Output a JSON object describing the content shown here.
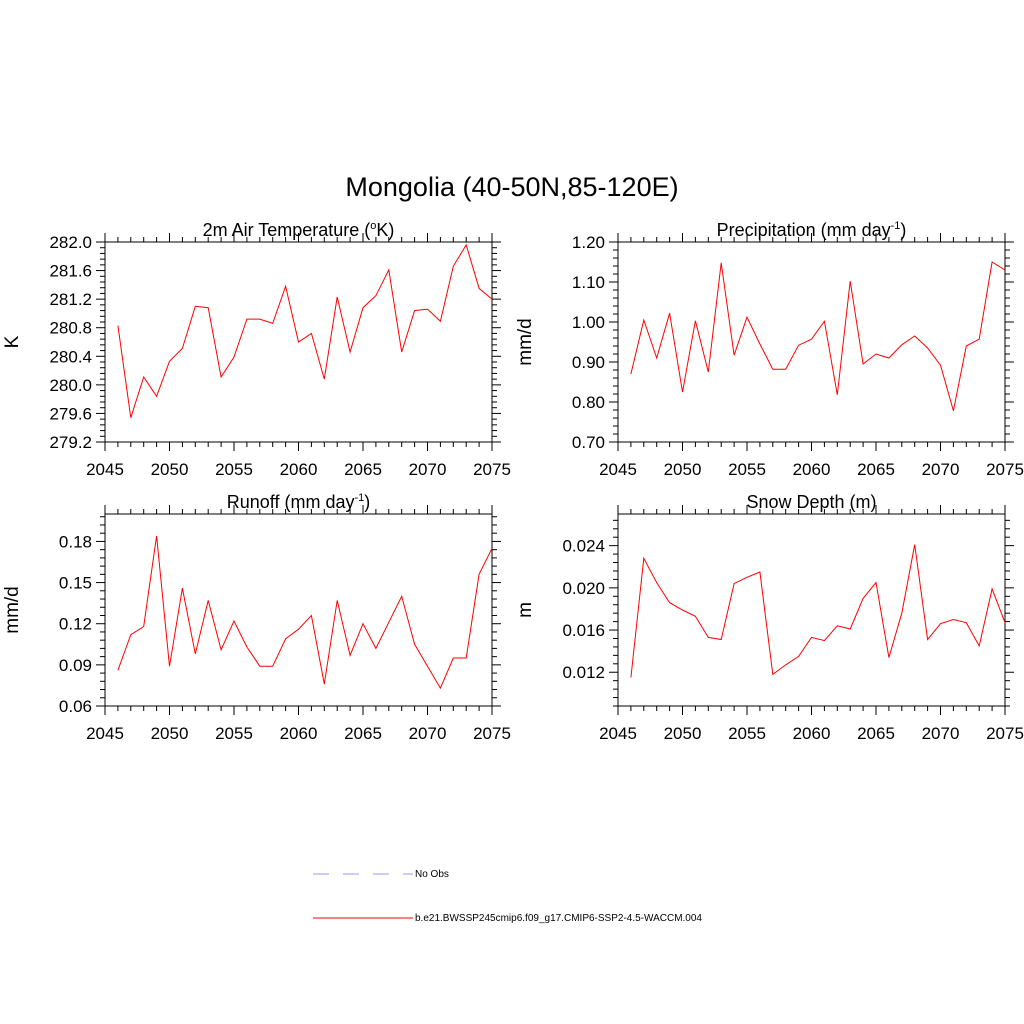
{
  "figure": {
    "title": "Mongolia (40-50N,85-120E)"
  },
  "legend": {
    "items": [
      {
        "label": "No Obs",
        "color": "#9999ee",
        "dashed": true
      },
      {
        "label": "b.e21.BWSSP245cmip6.f09_g17.CMIP6-SSP2-4.5-WACCM.004",
        "color": "#ff0000",
        "dashed": false
      }
    ]
  },
  "chart_data": [
    {
      "type": "line",
      "title": "2m Air Temperature (",
      "title_sup": "o",
      "title_tail": "K)",
      "ylabel": "K",
      "xlim": [
        2045,
        2075
      ],
      "ylim": [
        279.2,
        282.0
      ],
      "xticks": [
        2045,
        2050,
        2055,
        2060,
        2065,
        2070,
        2075
      ],
      "yticks": [
        279.2,
        279.6,
        280.0,
        280.4,
        280.8,
        281.2,
        281.6,
        282.0
      ],
      "ytick_labels": [
        "279.2",
        "279.6",
        "280.0",
        "280.4",
        "280.8",
        "281.2",
        "281.6",
        "282.0"
      ],
      "series": [
        {
          "color": "#ff0000",
          "x": [
            2046,
            2047,
            2048,
            2049,
            2050,
            2051,
            2052,
            2053,
            2054,
            2055,
            2056,
            2057,
            2058,
            2059,
            2060,
            2061,
            2062,
            2063,
            2064,
            2065,
            2066,
            2067,
            2068,
            2069,
            2070,
            2071,
            2072,
            2073,
            2074,
            2075
          ],
          "values": [
            280.83,
            279.54,
            280.11,
            279.84,
            280.33,
            280.51,
            281.1,
            281.08,
            280.11,
            280.39,
            280.92,
            280.92,
            280.86,
            281.38,
            280.6,
            280.72,
            280.08,
            281.23,
            280.46,
            281.08,
            281.25,
            281.61,
            280.46,
            281.04,
            281.06,
            280.89,
            281.66,
            281.96,
            281.35,
            281.2
          ]
        }
      ]
    },
    {
      "type": "line",
      "title": "Precipitation (mm day",
      "title_sup": "-1",
      "title_tail": ")",
      "ylabel": "mm/d",
      "xlim": [
        2045,
        2075
      ],
      "ylim": [
        0.7,
        1.2
      ],
      "xticks": [
        2045,
        2050,
        2055,
        2060,
        2065,
        2070,
        2075
      ],
      "yticks": [
        0.7,
        0.8,
        0.9,
        1.0,
        1.1,
        1.2
      ],
      "ytick_labels": [
        "0.70",
        "0.80",
        "0.90",
        "1.00",
        "1.10",
        "1.20"
      ],
      "series": [
        {
          "color": "#ff0000",
          "x": [
            2046,
            2047,
            2048,
            2049,
            2050,
            2051,
            2052,
            2053,
            2054,
            2055,
            2056,
            2057,
            2058,
            2059,
            2060,
            2061,
            2062,
            2063,
            2064,
            2065,
            2066,
            2067,
            2068,
            2069,
            2070,
            2071,
            2072,
            2073,
            2074,
            2075
          ],
          "values": [
            0.87,
            1.005,
            0.91,
            1.022,
            0.825,
            1.003,
            0.875,
            1.148,
            0.917,
            1.012,
            0.945,
            0.882,
            0.882,
            0.942,
            0.957,
            1.002,
            0.818,
            1.102,
            0.895,
            0.92,
            0.91,
            0.943,
            0.965,
            0.935,
            0.892,
            0.778,
            0.94,
            0.957,
            1.15,
            1.13
          ]
        }
      ]
    },
    {
      "type": "line",
      "title": "Runoff (mm day",
      "title_sup": "-1",
      "title_tail": ")",
      "ylabel": "mm/d",
      "xlim": [
        2045,
        2075
      ],
      "ylim": [
        0.06,
        0.2
      ],
      "xticks": [
        2045,
        2050,
        2055,
        2060,
        2065,
        2070,
        2075
      ],
      "yticks": [
        0.06,
        0.09,
        0.12,
        0.15,
        0.18
      ],
      "ytick_labels": [
        "0.06",
        "0.09",
        "0.12",
        "0.15",
        "0.18"
      ],
      "series": [
        {
          "color": "#ff0000",
          "x": [
            2046,
            2047,
            2048,
            2049,
            2050,
            2051,
            2052,
            2053,
            2054,
            2055,
            2056,
            2057,
            2058,
            2059,
            2060,
            2061,
            2062,
            2063,
            2064,
            2065,
            2066,
            2067,
            2068,
            2069,
            2070,
            2071,
            2072,
            2073,
            2074,
            2075
          ],
          "values": [
            0.086,
            0.112,
            0.118,
            0.184,
            0.089,
            0.146,
            0.098,
            0.137,
            0.101,
            0.122,
            0.103,
            0.089,
            0.089,
            0.109,
            0.116,
            0.126,
            0.076,
            0.137,
            0.097,
            0.12,
            0.102,
            0.121,
            0.14,
            0.105,
            0.089,
            0.073,
            0.095,
            0.095,
            0.156,
            0.175
          ]
        }
      ]
    },
    {
      "type": "line",
      "title": "Snow Depth (m)",
      "title_sup": "",
      "title_tail": "",
      "ylabel": "m",
      "xlim": [
        2045,
        2075
      ],
      "ylim": [
        0.0088,
        0.027
      ],
      "xticks": [
        2045,
        2050,
        2055,
        2060,
        2065,
        2070,
        2075
      ],
      "yticks": [
        0.012,
        0.016,
        0.02,
        0.024
      ],
      "ytick_labels": [
        "0.012",
        "0.016",
        "0.020",
        "0.024"
      ],
      "series": [
        {
          "color": "#ff0000",
          "x": [
            2046,
            2047,
            2048,
            2049,
            2050,
            2051,
            2052,
            2053,
            2054,
            2055,
            2056,
            2057,
            2058,
            2059,
            2060,
            2061,
            2062,
            2063,
            2064,
            2065,
            2066,
            2067,
            2068,
            2069,
            2070,
            2071,
            2072,
            2073,
            2074,
            2075
          ],
          "values": [
            0.0115,
            0.0228,
            0.0205,
            0.0186,
            0.0179,
            0.0173,
            0.0153,
            0.0151,
            0.0204,
            0.021,
            0.0215,
            0.0118,
            0.0127,
            0.0135,
            0.0153,
            0.015,
            0.0164,
            0.0161,
            0.019,
            0.0205,
            0.0134,
            0.0176,
            0.0241,
            0.0151,
            0.0166,
            0.017,
            0.0167,
            0.0145,
            0.0199,
            0.0167
          ]
        }
      ]
    }
  ]
}
